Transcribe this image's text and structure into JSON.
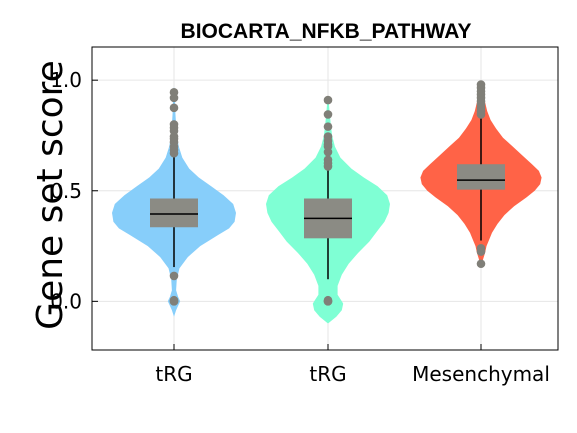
{
  "chart_data": {
    "type": "violin",
    "title": "BIOCARTA_NFKB_PATHWAY",
    "xlabel": "",
    "ylabel": "Gene set score",
    "ylim": [
      -0.22,
      1.15
    ],
    "yticks": [
      0.0,
      0.5,
      1.0
    ],
    "ytick_labels": [
      "0.0",
      "0.5",
      "1.0"
    ],
    "grid": true,
    "categories": [
      "tRG",
      "tRG",
      "Mesenchymal"
    ],
    "groups": [
      {
        "label": "tRG",
        "color": "#87CEFA",
        "q1": 0.335,
        "median": 0.395,
        "q3": 0.465,
        "whisker_low": 0.155,
        "whisker_high": 0.655,
        "outliers": [
          0.945,
          0.92,
          0.875,
          0.8,
          0.785,
          0.77,
          0.745,
          0.735,
          0.72,
          0.7,
          0.685,
          0.67,
          0.115,
          0.005,
          0.0,
          0.0
        ],
        "kde_y": [
          -0.07,
          -0.04,
          -0.02,
          0.0,
          0.02,
          0.05,
          0.1,
          0.15,
          0.2,
          0.25,
          0.3,
          0.33,
          0.36,
          0.4,
          0.44,
          0.48,
          0.52,
          0.56,
          0.6,
          0.65,
          0.7,
          0.75,
          0.8,
          0.85,
          0.9,
          0.95,
          0.97
        ],
        "kde_width": [
          0.0,
          0.015,
          0.03,
          0.045,
          0.03,
          0.015,
          0.02,
          0.04,
          0.1,
          0.19,
          0.32,
          0.4,
          0.44,
          0.45,
          0.43,
          0.36,
          0.27,
          0.18,
          0.11,
          0.06,
          0.035,
          0.02,
          0.015,
          0.01,
          0.008,
          0.005,
          0.0
        ]
      },
      {
        "label": "tRG",
        "color": "#7FFFD4",
        "q1": 0.285,
        "median": 0.375,
        "q3": 0.465,
        "whisker_low": 0.1,
        "whisker_high": 0.6,
        "outliers": [
          0.91,
          0.845,
          0.79,
          0.745,
          0.725,
          0.71,
          0.7,
          0.675,
          0.64,
          0.625,
          0.61,
          0.005,
          0.0,
          0.0
        ],
        "kde_y": [
          -0.1,
          -0.07,
          -0.04,
          -0.01,
          0.0,
          0.03,
          0.07,
          0.12,
          0.17,
          0.22,
          0.27,
          0.32,
          0.36,
          0.4,
          0.44,
          0.48,
          0.52,
          0.56,
          0.6,
          0.65,
          0.7,
          0.75,
          0.8,
          0.85,
          0.9,
          0.93
        ],
        "kde_width": [
          0.0,
          0.06,
          0.1,
          0.11,
          0.1,
          0.07,
          0.07,
          0.1,
          0.15,
          0.22,
          0.3,
          0.36,
          0.41,
          0.44,
          0.45,
          0.43,
          0.36,
          0.26,
          0.17,
          0.09,
          0.05,
          0.03,
          0.02,
          0.012,
          0.006,
          0.0
        ]
      },
      {
        "label": "Mesenchymal",
        "color": "#FF6347",
        "q1": 0.505,
        "median": 0.548,
        "q3": 0.62,
        "whisker_low": 0.275,
        "whisker_high": 0.84,
        "outliers": [
          0.98,
          0.965,
          0.95,
          0.935,
          0.92,
          0.905,
          0.89,
          0.875,
          0.86,
          0.845,
          0.24,
          0.225,
          0.17
        ],
        "kde_y": [
          0.15,
          0.19,
          0.22,
          0.25,
          0.28,
          0.31,
          0.35,
          0.39,
          0.43,
          0.47,
          0.5,
          0.53,
          0.56,
          0.59,
          0.62,
          0.66,
          0.7,
          0.74,
          0.78,
          0.82,
          0.86,
          0.9,
          0.94,
          0.98,
          1.0
        ],
        "kde_width": [
          0.0,
          0.015,
          0.03,
          0.04,
          0.06,
          0.08,
          0.12,
          0.17,
          0.24,
          0.33,
          0.39,
          0.43,
          0.44,
          0.42,
          0.37,
          0.3,
          0.23,
          0.16,
          0.11,
          0.07,
          0.045,
          0.03,
          0.018,
          0.008,
          0.0
        ]
      }
    ]
  }
}
